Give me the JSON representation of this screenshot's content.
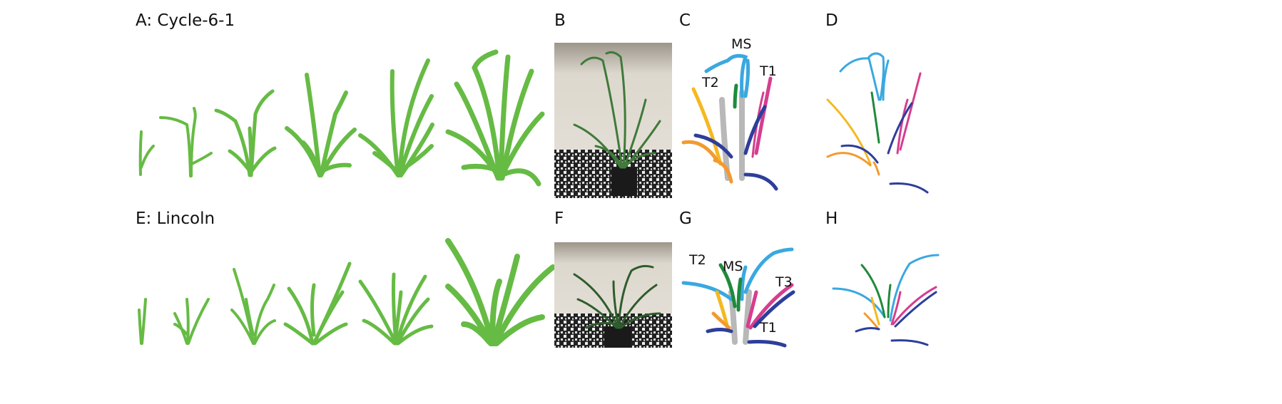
{
  "rows": [
    {
      "id": "top",
      "series_label": "A: Cycle-6-1",
      "photo_label": "B",
      "colored_label": "C",
      "skeleton_label": "D",
      "stem_labels": [
        "MS",
        "T1",
        "T2"
      ]
    },
    {
      "id": "bottom",
      "series_label": "E: Lincoln",
      "photo_label": "F",
      "colored_label": "G",
      "skeleton_label": "H",
      "stem_labels": [
        "T2",
        "MS",
        "T3",
        "T1"
      ]
    }
  ],
  "colors": {
    "plant_green": "#66bb44",
    "ms": "#3aa8e0",
    "t1": "#d63d8f",
    "t2": "#f5b820",
    "t3": "#2d3e9a",
    "dark_green": "#1f8a3c",
    "orange": "#f39a2e",
    "gray": "#b8b8b8"
  }
}
